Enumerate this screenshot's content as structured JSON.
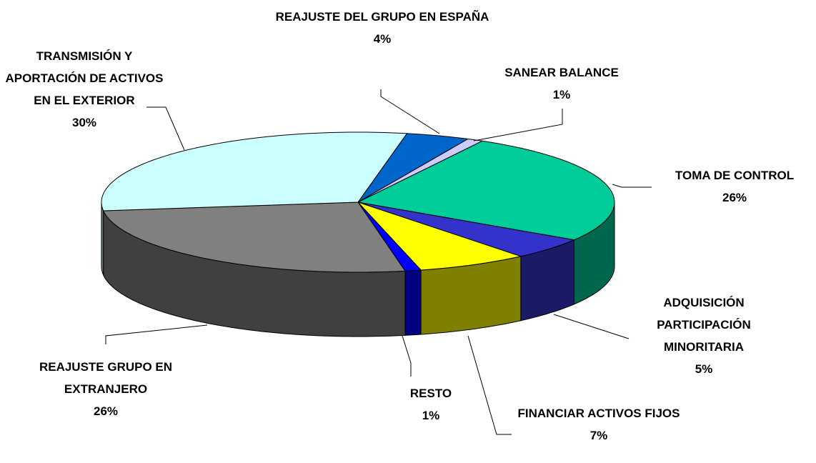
{
  "chart_data": {
    "type": "pie3d",
    "categories": [
      "REAJUSTE DEL GRUPO EN ESPAÑA",
      "SANEAR BALANCE",
      "TOMA DE CONTROL",
      "ADQUISICIÓN PARTICIPACIÓN MINORITARIA",
      "FINANCIAR ACTIVOS FIJOS",
      "RESTO",
      "REAJUSTE GRUPO EN EXTRANJERO",
      "TRANSMISIÓN Y APORTACIÓN DE ACTIVOS EN EL EXTERIOR"
    ],
    "values": [
      4,
      1,
      26,
      5,
      7,
      1,
      26,
      30
    ],
    "value_labels": [
      "4%",
      "1%",
      "26%",
      "5%",
      "7%",
      "1%",
      "26%",
      "30%"
    ],
    "colors": [
      "#0066cc",
      "#ccccff",
      "#00cc99",
      "#3333cc",
      "#ffff00",
      "#0000ff",
      "#808080",
      "#ccffff"
    ]
  }
}
